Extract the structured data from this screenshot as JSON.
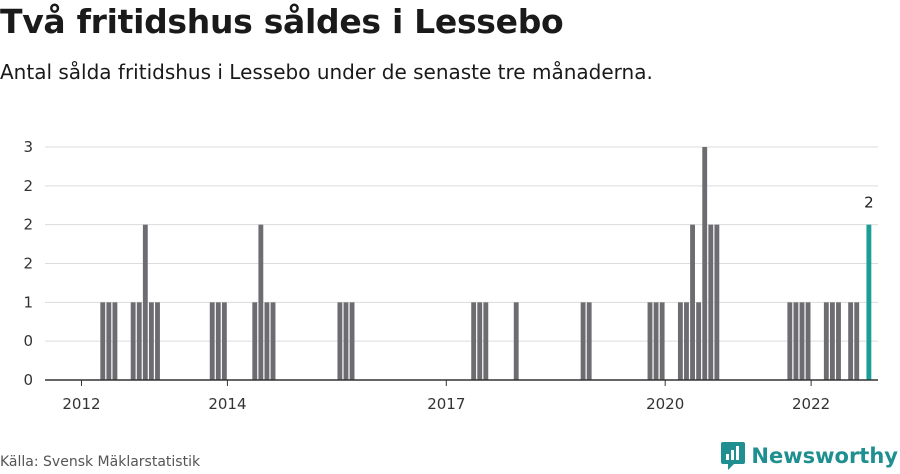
{
  "header": {
    "title": "Två fritidshus såldes i Lessebo",
    "subtitle": "Antal sålda fritidshus i Lessebo under de senaste tre månaderna."
  },
  "footer": {
    "source": "Källa: Svensk Mäklarstatistik",
    "brand": "Newsworthy"
  },
  "colors": {
    "bar": "#6d6c71",
    "highlight": "#1b9e96",
    "grid": "#dcdcdc",
    "axis": "#333333",
    "brand": "#1f8f8f"
  },
  "icons": {
    "brand_logo": "newsworthy-logo-icon"
  },
  "chart_data": {
    "type": "bar",
    "title": "Två fritidshus såldes i Lessebo",
    "subtitle": "Antal sålda fritidshus i Lessebo under de senaste tre månaderna.",
    "xlabel": "",
    "ylabel": "",
    "ylim": [
      0,
      3
    ],
    "yticks": [
      0,
      0.5,
      1,
      1.5,
      2,
      2.5,
      3
    ],
    "ytick_labels": [
      "0",
      "0",
      "1",
      "2",
      "2",
      "2",
      "3"
    ],
    "xlim": [
      2011.5,
      2022.9167
    ],
    "xticks": [
      2012,
      2014,
      2017,
      2020,
      2022
    ],
    "xtick_labels": [
      "2012",
      "2014",
      "2017",
      "2020",
      "2022"
    ],
    "grid": true,
    "bar_period_years": 0.0833,
    "series": [
      {
        "name": "Antal sålda fritidshus",
        "points": [
          {
            "x": 2012.2917,
            "y": 1
          },
          {
            "x": 2012.375,
            "y": 1
          },
          {
            "x": 2012.4583,
            "y": 1
          },
          {
            "x": 2012.7083,
            "y": 1
          },
          {
            "x": 2012.7917,
            "y": 1
          },
          {
            "x": 2012.875,
            "y": 2
          },
          {
            "x": 2012.9583,
            "y": 1
          },
          {
            "x": 2013.0417,
            "y": 1
          },
          {
            "x": 2013.7917,
            "y": 1
          },
          {
            "x": 2013.875,
            "y": 1
          },
          {
            "x": 2013.9583,
            "y": 1
          },
          {
            "x": 2014.375,
            "y": 1
          },
          {
            "x": 2014.4583,
            "y": 2
          },
          {
            "x": 2014.5417,
            "y": 1
          },
          {
            "x": 2014.625,
            "y": 1
          },
          {
            "x": 2015.5417,
            "y": 1
          },
          {
            "x": 2015.625,
            "y": 1
          },
          {
            "x": 2015.7083,
            "y": 1
          },
          {
            "x": 2017.375,
            "y": 1
          },
          {
            "x": 2017.4583,
            "y": 1
          },
          {
            "x": 2017.5417,
            "y": 1
          },
          {
            "x": 2017.9583,
            "y": 1
          },
          {
            "x": 2018.875,
            "y": 1
          },
          {
            "x": 2018.9583,
            "y": 1
          },
          {
            "x": 2019.7917,
            "y": 1
          },
          {
            "x": 2019.875,
            "y": 1
          },
          {
            "x": 2019.9583,
            "y": 1
          },
          {
            "x": 2020.2083,
            "y": 1
          },
          {
            "x": 2020.2917,
            "y": 1
          },
          {
            "x": 2020.375,
            "y": 2
          },
          {
            "x": 2020.4583,
            "y": 1
          },
          {
            "x": 2020.5417,
            "y": 3
          },
          {
            "x": 2020.625,
            "y": 2
          },
          {
            "x": 2020.7083,
            "y": 2
          },
          {
            "x": 2021.7083,
            "y": 1
          },
          {
            "x": 2021.7917,
            "y": 1
          },
          {
            "x": 2021.875,
            "y": 1
          },
          {
            "x": 2021.9583,
            "y": 1
          },
          {
            "x": 2022.2083,
            "y": 1
          },
          {
            "x": 2022.2917,
            "y": 1
          },
          {
            "x": 2022.375,
            "y": 1
          },
          {
            "x": 2022.5417,
            "y": 1
          },
          {
            "x": 2022.625,
            "y": 1
          }
        ]
      }
    ],
    "highlight": {
      "x": 2022.7917,
      "y": 2,
      "label": "2"
    }
  }
}
